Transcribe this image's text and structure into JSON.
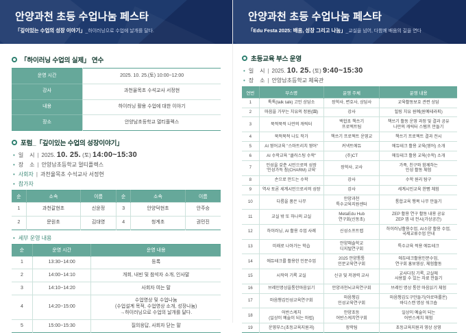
{
  "left": {
    "banner": {
      "title": "안양과천 초등 수업나눔 페스타",
      "subtitle_bold": "「깊이있는 수업의 성장 이야기」",
      "subtitle_rest": "_하이러닝으로 수업에 날개를 달다."
    },
    "training": {
      "heading": "「하이러닝 수업의 실제」 연수",
      "table": {
        "widths": [
          "34%",
          "66%"
        ],
        "rows": [
          [
            "운영 시간",
            "2025. 10. 25.(토) 10:00~12:00"
          ],
          [
            "강사",
            "과천율목초 수석교사 서정현"
          ],
          [
            "내용",
            "하이러닝 활용 수업에 대한 이야기"
          ],
          [
            "장소",
            "안양남초등학교 멀티플렉스"
          ]
        ]
      }
    },
    "forum": {
      "heading": "포럼_「깊이있는 수업의 성장이야기」",
      "dt": {
        "label": "일    시",
        "year": "2025.",
        "day": "10. 25.",
        "dow": "(토)",
        "time": "14:00~15:30"
      },
      "loc": {
        "label": "장    소",
        "value": "안양남초등학교 멀티플렉스"
      },
      "host": {
        "label": "사회자",
        "value": "과천율목초 수석교사 서정현"
      },
      "participants_label": "참가자",
      "participants": {
        "widths": [
          "7%",
          "26%",
          "17%",
          "7%",
          "26%",
          "17%"
        ],
        "headers": [
          "순",
          "소속",
          "이름",
          "순",
          "소속",
          "이름"
        ],
        "rows": [
          [
            "1",
            "과천갈현초",
            "신윤정",
            "3",
            "안양덕현초",
            "안주승"
          ],
          [
            "2",
            "문원초",
            "김대영",
            "4",
            "청계초",
            "권민진"
          ]
        ]
      },
      "schedule_label": "세부 운영 내용",
      "schedule": {
        "widths": [
          "10%",
          "28%",
          "62%"
        ],
        "headers": [
          "순",
          "운영 시간",
          "운영 내용"
        ],
        "rows": [
          [
            "1",
            "13:30~14:00",
            "등록"
          ],
          [
            "2",
            "14:00~14:10",
            "개회, 내빈 및 참석자 소개, 인사말"
          ],
          [
            "3",
            "14:10~14:20",
            "사회자 여는 말"
          ],
          [
            "4",
            "14:20~15:00",
            "수업영상 및 수업나눔\n(수업설계 목적, 수업영상 소개, 성장나눔)\n→하이러닝으로 수업의 날개를 달다."
          ],
          [
            "5",
            "15:00~15:30",
            "질의응답, 사회자 닫는 말"
          ]
        ]
      }
    }
  },
  "right": {
    "banner": {
      "title": "안양과천 초등 수업나눔 페스타",
      "subtitle_bold": "「Edu Festa 2025: 배움, 성장 그리고 나눔」",
      "subtitle_rest": "_교실을 넘어, 다함께 배움의 길을 연다"
    },
    "booth": {
      "heading": "초등교육 부스 운영",
      "dt": {
        "label": "일    시",
        "year": "2025.",
        "day": "10. 25.",
        "dow": "(토)",
        "time": "9:40~15:30"
      },
      "loc": {
        "label": "장    소",
        "value": "안양남초등학교 체육관"
      },
      "table": {
        "widths": [
          "8%",
          "30%",
          "26%",
          "36%"
        ],
        "headers": [
          "연번",
          "부스명",
          "운영 주체",
          "운영 내용"
        ],
        "rows": [
          [
            "1",
            "톡톡(talk talk) 고민 상담소",
            "장학사, 변호사, 상담사",
            "교육활동보호 관련 상담"
          ],
          [
            "2",
            "마음을 가꾸는 치유의 정원(園)",
            "강사",
            "힐링 치유 원예(원예테라피)"
          ],
          [
            "3",
            "북적북적 나만의 캐릭터",
            "백합초 책쓰기\n프로젝트팀",
            "책쓰기 활동 운영 과정 및 결과 공유\n나만의 캐릭터 스탬프 만들기"
          ],
          [
            "4",
            "북적북적 나도 작가",
            "책쓰기 프로젝트 운영교",
            "책쓰기 프로젝트 결과 전시"
          ],
          [
            "5",
            "AI 영어교육 \"스마트리치 영어\"",
            "커넥트에듀",
            "에듀테크 활용 교육(영어) 소개"
          ],
          [
            "6",
            "AI 수학교육 \"클러스팅 수학\"",
            "(주)CT",
            "에듀테크 활용 교육(수학) 소개"
          ],
          [
            "7",
            "인성을 갖춘 시민으로의 성장\n'인성가득 참(CHARM) 교육'",
            "장학사, 교사",
            "가족, 친구와 함께하는\n인성 활동 체험"
          ],
          [
            "8",
            "손으로 만드는 수학",
            "강사",
            "수학 원리 탐구"
          ],
          [
            "9",
            "역사 토론 세계시민으로서의 성장",
            "강사",
            "세계시민교육 한뼘 체험"
          ],
          [
            "10",
            "다름을 품은 나무",
            "안양과천\n특수교육지원센터",
            "통합교육 행복 나무 만들기"
          ],
          [
            "11",
            "교실 밖 또 하나의 교실",
            "MetaEdu Hub\n연구회(신동초)",
            "ZEP 활용 연구 활동 내용 공유\nZEP 앱 내 전시(가상공간)"
          ],
          [
            "12",
            "하이러닝, AI 활용 수업 사례",
            "신성소프트랩",
            "하이러닝활용수업, AI소양 활용 수업,\n국제교류수업 안내"
          ],
          [
            "13",
            "미래로 나아가는 학습",
            "안양해솔학교\n디지털연구회",
            "특수교육 적용 에듀테크"
          ],
          [
            "14",
            "에듀테크를 활용한 인문수업",
            "2025 안양통통\n인문교육연구회",
            "에듀테크활용인문수업,\n연구회 홍보영상, 체험활동"
          ],
          [
            "15",
            "시작의 기록 교실",
            "신규 및 저경력 교사",
            "교사다짐 기록, 교실에\n사용할 수 있는 자료 만들기"
          ],
          [
            "16",
            "브레인명상을통한마음읽기",
            "안양과천뇌교육연구회",
            "브레인 명상 통한 마음읽기 체험"
          ],
          [
            "17",
            "마음챙김인성교육연구회",
            "마음챙김\n인성교육연구회",
            "마음챙김도구만들기(아로마롤온)\n바디스캔 명상 워크숍"
          ],
          [
            "18",
            "어반스케치\n(일상이 예술이 되는 마법)",
            "안양초등\n어반스케치연구회",
            "일상이 예술이 되는\n어반스케치 체험"
          ],
          [
            "19",
            "운영부스(초등교육지원과)",
            "장학팀",
            "초등교육지원과 영상 상영"
          ]
        ]
      }
    }
  }
}
